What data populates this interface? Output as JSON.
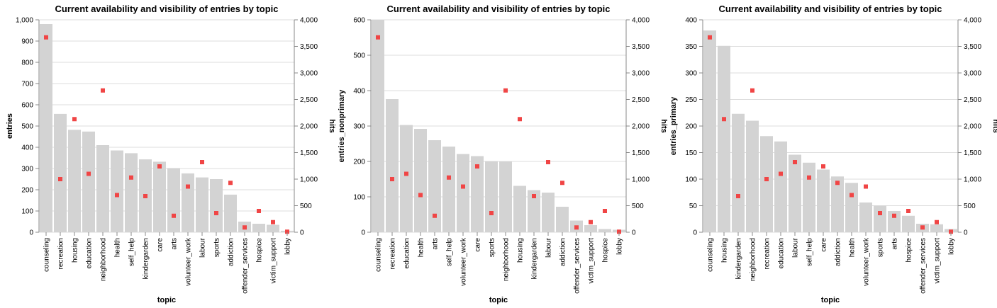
{
  "colors": {
    "bar": "#d3d3d3",
    "point": "#f04545",
    "grid": "#dddddd",
    "axis": "#888888"
  },
  "chart_data": [
    {
      "type": "bar",
      "title": "Current availability and visibility of entries by topic",
      "xlabel": "topic",
      "ylabel": "entries",
      "y2label": "hits",
      "ylim": [
        0,
        1000
      ],
      "y2lim": [
        0,
        4000
      ],
      "yticks": [
        "0",
        "100",
        "200",
        "300",
        "400",
        "500",
        "600",
        "700",
        "800",
        "900",
        "1,000"
      ],
      "y2ticks": [
        "0",
        "500",
        "1,000",
        "1,500",
        "2,000",
        "2,500",
        "3,000",
        "3,500",
        "4,000"
      ],
      "categories": [
        "counseling",
        "recreation",
        "housing",
        "education",
        "neighborhood",
        "health",
        "self_help",
        "kindergarden",
        "care",
        "arts",
        "volunteer_work",
        "labour",
        "sports",
        "addiction",
        "offender_services",
        "hospice",
        "victim_support",
        "lobby"
      ],
      "series": [
        {
          "axis": "left",
          "mark": "bar",
          "values": [
            980,
            557,
            482,
            474,
            410,
            385,
            372,
            343,
            332,
            302,
            277,
            258,
            250,
            177,
            50,
            40,
            35,
            7
          ]
        },
        {
          "axis": "right",
          "mark": "point",
          "values": [
            3670,
            1000,
            2130,
            1100,
            2670,
            700,
            1030,
            680,
            1240,
            310,
            860,
            1320,
            360,
            930,
            90,
            400,
            190,
            10
          ]
        }
      ]
    },
    {
      "type": "bar",
      "title": "Current availability and visibility of entries by topic",
      "xlabel": "topic",
      "ylabel": "entries_nonprimary",
      "y2label": "hits",
      "ylim": [
        0,
        600
      ],
      "y2lim": [
        0,
        4000
      ],
      "yticks": [
        "0",
        "100",
        "200",
        "300",
        "400",
        "500",
        "600"
      ],
      "y2ticks": [
        "0",
        "500",
        "1,000",
        "1,500",
        "2,000",
        "2,500",
        "3,000",
        "3,500",
        "4,000"
      ],
      "categories": [
        "counseling",
        "recreation",
        "education",
        "health",
        "arts",
        "self_help",
        "volunteer_work",
        "care",
        "sports",
        "neighborhood",
        "housing",
        "kindergarden",
        "labour",
        "addiction",
        "offender_services",
        "victim_support",
        "hospice",
        "lobby"
      ],
      "series": [
        {
          "axis": "left",
          "mark": "bar",
          "values": [
            600,
            376,
            303,
            292,
            260,
            242,
            221,
            215,
            201,
            200,
            131,
            119,
            112,
            72,
            33,
            20,
            9,
            7
          ]
        },
        {
          "axis": "right",
          "mark": "point",
          "values": [
            3670,
            1000,
            1100,
            700,
            310,
            1030,
            860,
            1240,
            360,
            2670,
            2130,
            680,
            1320,
            930,
            90,
            190,
            400,
            10
          ]
        }
      ]
    },
    {
      "type": "bar",
      "title": "Current availability and visibility of entries by topic",
      "xlabel": "topic",
      "ylabel": "entries_primary",
      "y2label": "hits",
      "ylim": [
        0,
        400
      ],
      "y2lim": [
        0,
        4000
      ],
      "yticks": [
        "0",
        "50",
        "100",
        "150",
        "200",
        "250",
        "300",
        "350",
        "400"
      ],
      "y2ticks": [
        "0",
        "500",
        "1,000",
        "1,500",
        "2,000",
        "2,500",
        "3,000",
        "3,500",
        "4,000"
      ],
      "categories": [
        "counseling",
        "housing",
        "kindergarden",
        "neighborhood",
        "recreation",
        "education",
        "labour",
        "self_help",
        "care",
        "addiction",
        "health",
        "volunteer_work",
        "sports",
        "arts",
        "hospice",
        "offender_services",
        "victim_support",
        "lobby"
      ],
      "series": [
        {
          "axis": "left",
          "mark": "bar",
          "values": [
            380,
            351,
            223,
            210,
            181,
            171,
            146,
            131,
            118,
            105,
            93,
            56,
            50,
            40,
            31,
            16,
            15,
            6
          ]
        },
        {
          "axis": "right",
          "mark": "point",
          "values": [
            3670,
            2130,
            680,
            2670,
            1000,
            1100,
            1320,
            1030,
            1240,
            930,
            700,
            860,
            360,
            310,
            400,
            90,
            190,
            10
          ]
        }
      ]
    }
  ]
}
